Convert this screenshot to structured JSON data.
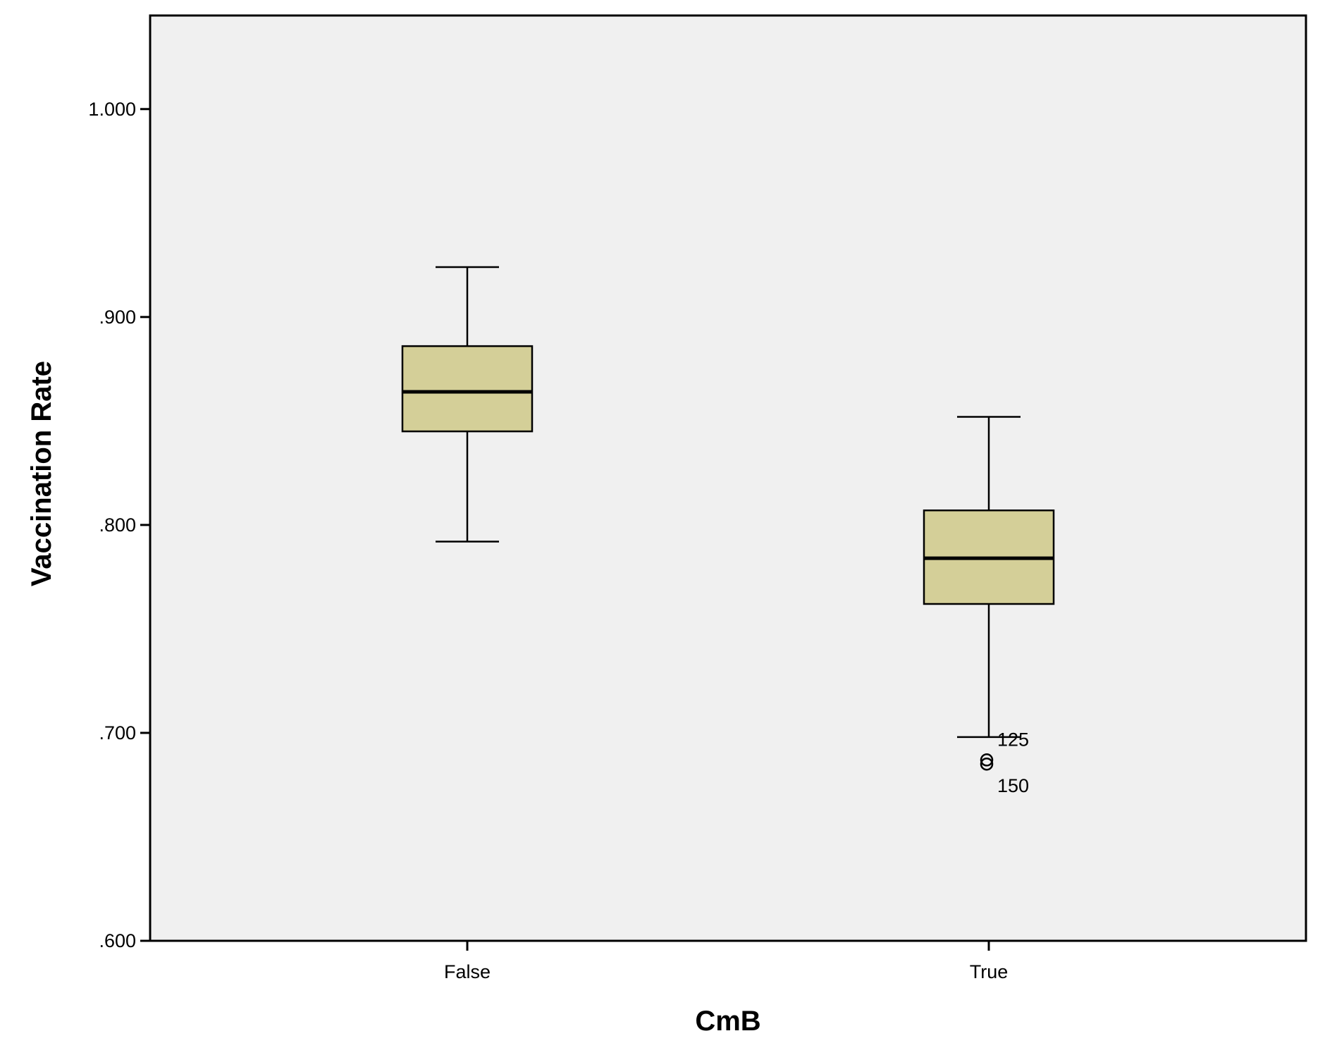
{
  "chart_data": {
    "type": "boxplot",
    "title": "",
    "xlabel": "CmB",
    "ylabel": "Vaccination Rate",
    "categories": [
      "False",
      "True"
    ],
    "ylim": [
      0.6,
      1.045
    ],
    "yticks": [
      {
        "value": 1.0,
        "label": "1.000"
      },
      {
        "value": 0.9,
        "label": ".900"
      },
      {
        "value": 0.8,
        "label": ".800"
      },
      {
        "value": 0.7,
        "label": ".700"
      },
      {
        "value": 0.6,
        "label": ".600"
      }
    ],
    "boxes": [
      {
        "category": "False",
        "whisker_low": 0.792,
        "q1": 0.845,
        "median": 0.864,
        "q3": 0.886,
        "whisker_high": 0.924,
        "outliers": []
      },
      {
        "category": "True",
        "whisker_low": 0.698,
        "q1": 0.762,
        "median": 0.784,
        "q3": 0.807,
        "whisker_high": 0.852,
        "outliers": [
          {
            "value": 0.687,
            "label": "125"
          },
          {
            "value": 0.685,
            "label": "150"
          }
        ]
      }
    ],
    "grid": false,
    "legend": "none",
    "colors": {
      "box_fill": "#d4cf98",
      "plot_background": "#f0f0f0",
      "line": "#000000"
    }
  }
}
